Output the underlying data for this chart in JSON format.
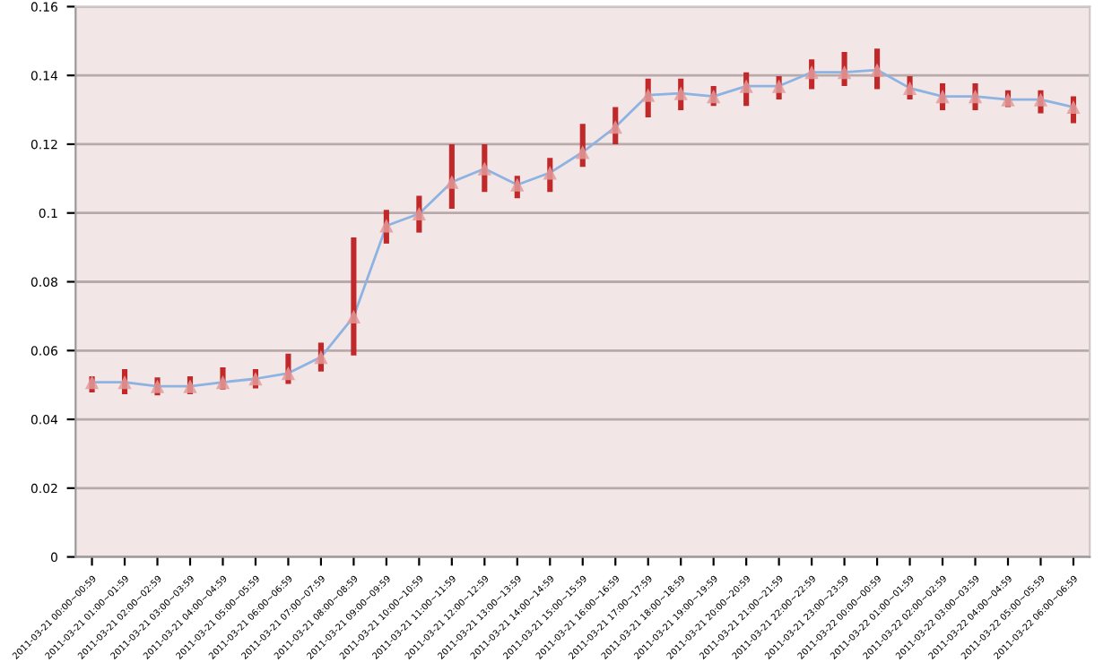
{
  "chart_data": {
    "type": "line",
    "categories": [
      "2011-03-21 00:00~00:59",
      "2011-03-21 01:00~01:59",
      "2011-03-21 02:00~02:59",
      "2011-03-21 03:00~03:59",
      "2011-03-21 04:00~04:59",
      "2011-03-21 05:00~05:59",
      "2011-03-21 06:00~06:59",
      "2011-03-21 07:00~07:59",
      "2011-03-21 08:00~08:59",
      "2011-03-21 09:00~09:59",
      "2011-03-21 10:00~10:59",
      "2011-03-21 11:00~11:59",
      "2011-03-21 12:00~12:59",
      "2011-03-21 13:00~13:59",
      "2011-03-21 14:00~14:59",
      "2011-03-21 15:00~15:59",
      "2011-03-21 16:00~16:59",
      "2011-03-21 17:00~17:59",
      "2011-03-21 18:00~18:59",
      "2011-03-21 19:00~19:59",
      "2011-03-21 20:00~20:59",
      "2011-03-21 21:00~21:59",
      "2011-03-21 22:00~22:59",
      "2011-03-21 23:00~23:59",
      "2011-03-22 00:00~00:59",
      "2011-03-22 01:00~01:59",
      "2011-03-22 02:00~02:59",
      "2011-03-22 03:00~03:59",
      "2011-03-22 04:00~04:59",
      "2011-03-22 05:00~05:59",
      "2011-03-22 06:00~06:59"
    ],
    "series": [
      {
        "color": "#8db3e2",
        "values": [
          0.0508,
          0.0508,
          0.0496,
          0.0496,
          0.0508,
          0.0518,
          0.0534,
          0.0581,
          0.0699,
          0.0963,
          0.0998,
          0.109,
          0.1129,
          0.1082,
          0.1117,
          0.1177,
          0.125,
          0.1343,
          0.1348,
          0.1339,
          0.1369,
          0.1369,
          0.1409,
          0.1409,
          0.1416,
          0.1363,
          0.1339,
          0.1339,
          0.133,
          0.133,
          0.1308
        ],
        "errors": [
          [
            0.0478,
            0.0525
          ],
          [
            0.0473,
            0.0546
          ],
          [
            0.047,
            0.0522
          ],
          [
            0.0473,
            0.0525
          ],
          [
            0.0487,
            0.0551
          ],
          [
            0.049,
            0.0546
          ],
          [
            0.0503,
            0.0591
          ],
          [
            0.0539,
            0.0623
          ],
          [
            0.0586,
            0.0929
          ],
          [
            0.0911,
            0.1009
          ],
          [
            0.0943,
            0.105
          ],
          [
            0.1012,
            0.12
          ],
          [
            0.1061,
            0.12
          ],
          [
            0.1043,
            0.1108
          ],
          [
            0.1061,
            0.116
          ],
          [
            0.1134,
            0.1259
          ],
          [
            0.12,
            0.1308
          ],
          [
            0.1278,
            0.1391
          ],
          [
            0.1299,
            0.1391
          ],
          [
            0.1311,
            0.1369
          ],
          [
            0.1311,
            0.1409
          ],
          [
            0.133,
            0.1398
          ],
          [
            0.136,
            0.1447
          ],
          [
            0.1369,
            0.1468
          ],
          [
            0.136,
            0.1478
          ],
          [
            0.133,
            0.1398
          ],
          [
            0.1299,
            0.1377
          ],
          [
            0.1299,
            0.1377
          ],
          [
            0.1308,
            0.1357
          ],
          [
            0.129,
            0.1357
          ],
          [
            0.1261,
            0.1339
          ]
        ]
      }
    ],
    "ylim": [
      0,
      0.16
    ],
    "yticks": [
      0,
      0.02,
      0.04,
      0.06,
      0.08,
      0.1,
      0.12,
      0.14,
      0.16
    ],
    "grid": "y",
    "marker": "triangle",
    "line_style": "solid",
    "legend": false
  }
}
